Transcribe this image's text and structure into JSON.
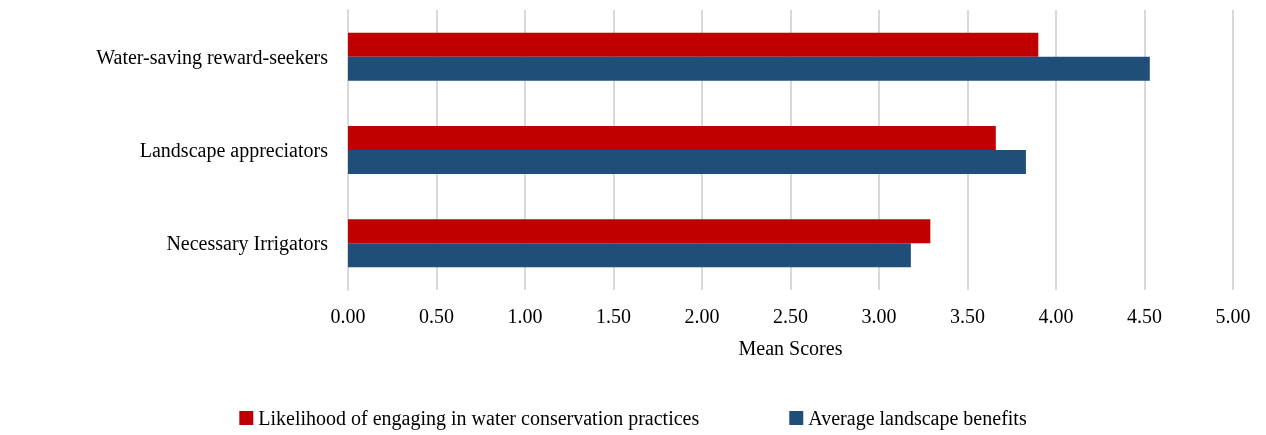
{
  "chart_data": {
    "type": "bar",
    "orientation": "horizontal",
    "xlabel": "Mean Scores",
    "categories": [
      "Water-saving reward-seekers",
      "Landscape appreciators",
      "Necessary Irrigators"
    ],
    "series": [
      {
        "name": "Likelihood of engaging in water conservation practices",
        "color": "#c00000",
        "values": [
          3.9,
          3.66,
          3.29
        ]
      },
      {
        "name": "Average landscape benefits",
        "color": "#1f4e79",
        "values": [
          4.53,
          3.83,
          3.18
        ]
      }
    ],
    "xlim": [
      0,
      5
    ],
    "xticks": [
      {
        "value": 0,
        "label": "0.00"
      },
      {
        "value": 0.5,
        "label": "0.50"
      },
      {
        "value": 1,
        "label": "1.00"
      },
      {
        "value": 1.5,
        "label": "1.50"
      },
      {
        "value": 2,
        "label": "2.00"
      },
      {
        "value": 2.5,
        "label": "2.50"
      },
      {
        "value": 3,
        "label": "3.00"
      },
      {
        "value": 3.5,
        "label": "3.50"
      },
      {
        "value": 4,
        "label": "4.00"
      },
      {
        "value": 4.5,
        "label": "4.50"
      },
      {
        "value": 5,
        "label": "5.00"
      }
    ],
    "grid": "x",
    "legend": "bottom"
  }
}
